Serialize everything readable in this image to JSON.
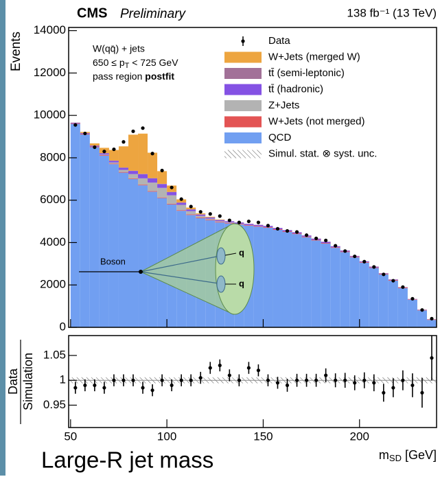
{
  "chart_data": {
    "type": "stacked-histogram",
    "title": "CMS",
    "subtitle": "Preliminary",
    "lumi": "138 fb⁻¹ (13 TeV)",
    "annotations": {
      "line1": "W(qq̄) + jets",
      "line2": {
        "pre": "650 ≤ p",
        "sub": "T",
        "post": " < 725 GeV"
      },
      "line3": "pass region ",
      "line3_bold": "postfit"
    },
    "ylabel": "Events",
    "xlabel": {
      "main": "m",
      "sub": "SD",
      "post": " [GeV]"
    },
    "caption": "Large-R jet mass",
    "inset": {
      "boson": "Boson",
      "quarks": [
        "q",
        "q"
      ]
    },
    "bins": [
      50,
      55,
      60,
      65,
      70,
      75,
      80,
      85,
      90,
      95,
      100,
      105,
      110,
      115,
      120,
      125,
      130,
      135,
      140,
      145,
      150,
      155,
      160,
      165,
      170,
      175,
      180,
      185,
      190,
      195,
      200,
      205,
      210,
      215,
      220,
      225,
      230,
      235,
      240
    ],
    "xlim": [
      49,
      240
    ],
    "xticks": [
      50,
      100,
      150,
      200
    ],
    "ylim": [
      0,
      14150
    ],
    "yticks": [
      0,
      2000,
      4000,
      6000,
      8000,
      10000,
      12000,
      14000
    ],
    "data": {
      "name": "Data",
      "values": [
        9550,
        9150,
        8500,
        8300,
        8400,
        8750,
        9250,
        9400,
        8200,
        7400,
        6600,
        6050,
        5700,
        5450,
        5350,
        5250,
        5050,
        4950,
        5000,
        4950,
        4800,
        4650,
        4550,
        4500,
        4350,
        4200,
        4100,
        3850,
        3600,
        3350,
        3100,
        2850,
        2500,
        2200,
        1900,
        1350,
        820,
        410
      ]
    },
    "series": [
      {
        "name": "W+Jets (merged W)",
        "color": "#eda540",
        "values": [
          0,
          50,
          100,
          250,
          500,
          1000,
          1700,
          1900,
          1200,
          600,
          300,
          150,
          80,
          50,
          30,
          20,
          0,
          0,
          0,
          0,
          0,
          0,
          0,
          0,
          0,
          0,
          0,
          0,
          0,
          0,
          0,
          0,
          0,
          0,
          0,
          0,
          0,
          0
        ]
      },
      {
        "name": "tt̄ (semi-leptonic)",
        "color": "#a27198",
        "values": [
          10,
          10,
          10,
          10,
          10,
          10,
          10,
          10,
          10,
          10,
          10,
          10,
          10,
          10,
          10,
          10,
          10,
          10,
          10,
          10,
          10,
          10,
          10,
          10,
          10,
          10,
          10,
          10,
          10,
          10,
          10,
          10,
          10,
          10,
          10,
          10,
          10,
          10
        ]
      },
      {
        "name": "tt̄ (hadronic)",
        "color": "#8452e4",
        "values": [
          20,
          30,
          40,
          60,
          80,
          100,
          150,
          200,
          200,
          180,
          150,
          100,
          80,
          60,
          50,
          50,
          50,
          50,
          50,
          50,
          50,
          50,
          50,
          50,
          50,
          50,
          50,
          40,
          40,
          30,
          30,
          30,
          20,
          20,
          10,
          10,
          10,
          5
        ]
      },
      {
        "name": "Z+Jets",
        "color": "#b3b3b3",
        "values": [
          0,
          0,
          0,
          20,
          50,
          100,
          200,
          300,
          400,
          450,
          400,
          250,
          150,
          80,
          50,
          30,
          20,
          10,
          0,
          0,
          0,
          0,
          0,
          0,
          0,
          0,
          0,
          0,
          0,
          0,
          0,
          0,
          0,
          0,
          0,
          0,
          0,
          0
        ]
      },
      {
        "name": "W+Jets (not merged)",
        "color": "#e35454",
        "values": [
          30,
          30,
          30,
          30,
          30,
          30,
          30,
          30,
          30,
          30,
          30,
          30,
          30,
          30,
          30,
          30,
          30,
          30,
          30,
          30,
          30,
          30,
          30,
          30,
          30,
          30,
          30,
          30,
          30,
          30,
          30,
          30,
          30,
          30,
          30,
          20,
          20,
          20
        ]
      },
      {
        "name": "QCD",
        "color": "#719ff1",
        "values": [
          9600,
          9100,
          8500,
          8100,
          7700,
          7300,
          7000,
          6700,
          6400,
          6100,
          5800,
          5500,
          5300,
          5150,
          5050,
          4950,
          4900,
          4850,
          4800,
          4750,
          4700,
          4600,
          4500,
          4400,
          4250,
          4100,
          3950,
          3750,
          3550,
          3300,
          3050,
          2800,
          2500,
          2200,
          1850,
          1300,
          800,
          350
        ]
      }
    ],
    "unc_label": "Simul. stat. ⊗ syst. unc.",
    "ratio": {
      "ylabel_num": "Data",
      "ylabel_den": "Simulation",
      "ylim": [
        0.905,
        1.09
      ],
      "yticks": [
        0.95,
        1,
        1.05
      ],
      "band": [
        0.994,
        1.006
      ],
      "values": [
        0.985,
        0.99,
        0.99,
        0.985,
        1.0,
        1.0,
        1.0,
        0.985,
        0.98,
        1.0,
        0.99,
        1.0,
        1.0,
        1.005,
        1.025,
        1.03,
        1.01,
        1.0,
        1.025,
        1.02,
        1.0,
        0.995,
        0.99,
        1.0,
        1.0,
        1.0,
        1.01,
        1.0,
        1.0,
        0.995,
        1.0,
        0.995,
        0.975,
        0.985,
        1.0,
        0.99,
        0.975,
        1.045
      ],
      "errors": [
        0.012,
        0.012,
        0.012,
        0.012,
        0.012,
        0.012,
        0.012,
        0.012,
        0.012,
        0.012,
        0.012,
        0.012,
        0.012,
        0.012,
        0.012,
        0.012,
        0.012,
        0.012,
        0.012,
        0.012,
        0.012,
        0.012,
        0.013,
        0.013,
        0.013,
        0.013,
        0.014,
        0.014,
        0.015,
        0.015,
        0.016,
        0.017,
        0.018,
        0.019,
        0.02,
        0.024,
        0.03,
        0.045
      ]
    }
  }
}
